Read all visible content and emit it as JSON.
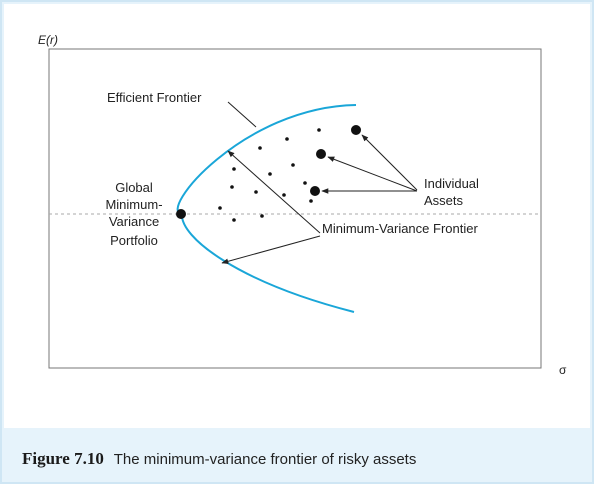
{
  "axes": {
    "y_label": "E(r)",
    "x_label": "σ"
  },
  "labels": {
    "efficient_frontier": "Efficient Frontier",
    "gmv": [
      "Global",
      "Minimum-",
      "Variance",
      "Portfolio"
    ],
    "individual_assets": [
      "Individual",
      "Assets"
    ],
    "min_variance_frontier": "Minimum-Variance Frontier"
  },
  "caption": {
    "figure_number": "Figure 7.10",
    "text": "The minimum-variance frontier of risky assets"
  },
  "colors": {
    "frontier_curve": "#1aa6d8",
    "caption_band": "#e6f3fb"
  }
}
